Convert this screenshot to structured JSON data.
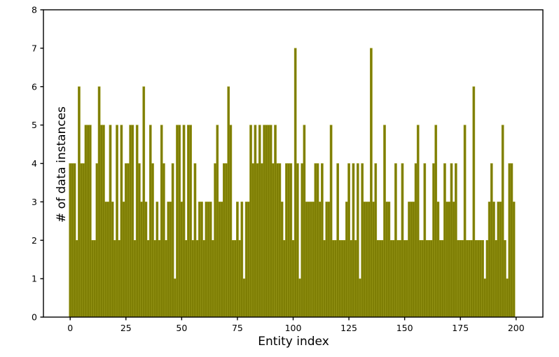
{
  "chart_data": {
    "type": "bar",
    "title": "",
    "xlabel": "Entity index",
    "ylabel": "# of data instances",
    "x_start_index": 0,
    "values": [
      4,
      4,
      4,
      2,
      6,
      4,
      4,
      5,
      5,
      5,
      2,
      2,
      4,
      6,
      5,
      5,
      3,
      3,
      5,
      3,
      2,
      5,
      2,
      5,
      3,
      4,
      4,
      5,
      5,
      2,
      5,
      4,
      3,
      6,
      3,
      2,
      5,
      4,
      2,
      3,
      2,
      5,
      4,
      2,
      3,
      3,
      4,
      1,
      5,
      5,
      3,
      5,
      2,
      5,
      5,
      2,
      4,
      2,
      3,
      3,
      2,
      3,
      3,
      3,
      2,
      4,
      5,
      3,
      3,
      4,
      4,
      6,
      5,
      2,
      2,
      3,
      2,
      3,
      1,
      3,
      3,
      5,
      4,
      5,
      4,
      5,
      4,
      5,
      5,
      5,
      5,
      4,
      5,
      4,
      4,
      3,
      2,
      4,
      4,
      4,
      2,
      7,
      4,
      1,
      4,
      5,
      3,
      3,
      3,
      3,
      4,
      4,
      3,
      4,
      2,
      3,
      3,
      5,
      2,
      2,
      4,
      2,
      2,
      2,
      3,
      4,
      2,
      4,
      2,
      4,
      1,
      4,
      3,
      3,
      3,
      7,
      3,
      4,
      2,
      2,
      2,
      5,
      3,
      3,
      2,
      2,
      4,
      2,
      2,
      4,
      2,
      2,
      3,
      3,
      3,
      4,
      5,
      2,
      2,
      4,
      2,
      2,
      2,
      4,
      5,
      3,
      2,
      2,
      4,
      3,
      3,
      4,
      3,
      4,
      2,
      2,
      2,
      5,
      2,
      2,
      2,
      6,
      2,
      2,
      2,
      2,
      1,
      2,
      3,
      4,
      3,
      2,
      3,
      3,
      5,
      2,
      1,
      4,
      4,
      3
    ],
    "xlim": [
      -12,
      212
    ],
    "ylim": [
      0,
      8
    ],
    "xticks": [
      0,
      25,
      50,
      75,
      100,
      125,
      150,
      175,
      200
    ],
    "yticks": [
      0,
      1,
      2,
      3,
      4,
      5,
      6,
      7,
      8
    ],
    "grid": false,
    "legend": "none",
    "bar_color": "#7e7e04",
    "bar_edge_color": "#9d9d1e",
    "axis_color": "#000000",
    "background_color": "#ffffff"
  }
}
